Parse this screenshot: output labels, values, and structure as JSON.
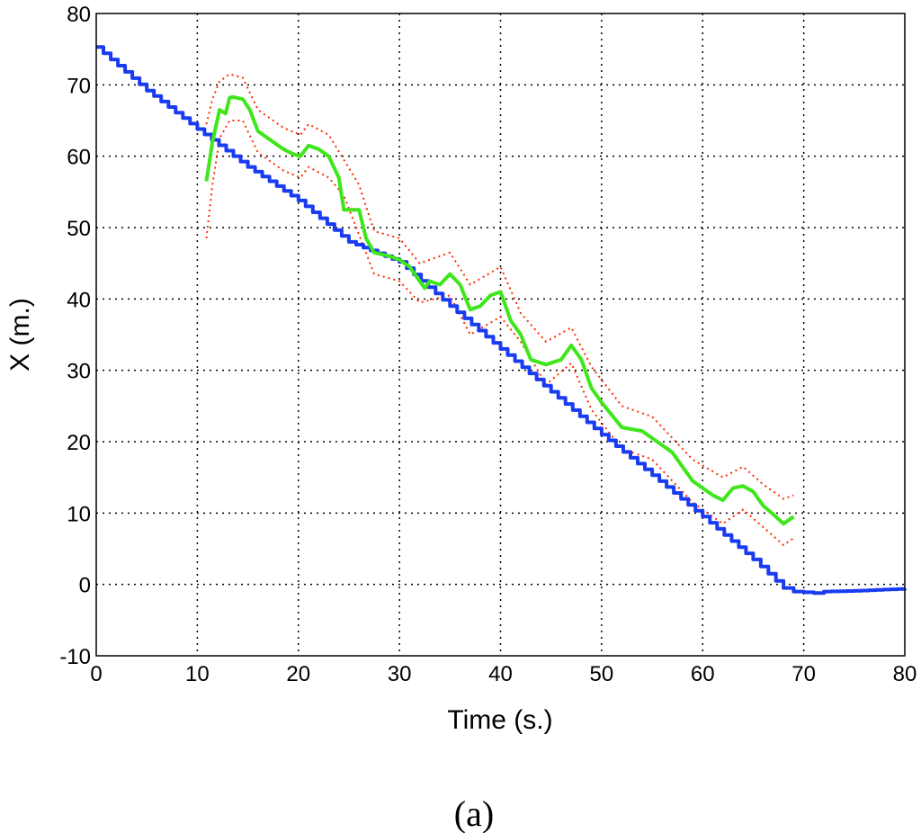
{
  "chart_data": {
    "type": "line",
    "xlabel": "Time (s.)",
    "ylabel": "X (m.)",
    "xlim": [
      0,
      80
    ],
    "ylim": [
      -10,
      80
    ],
    "xticks": [
      "0",
      "10",
      "20",
      "30",
      "40",
      "50",
      "60",
      "70",
      "80"
    ],
    "yticks": [
      "-10",
      "0",
      "10",
      "20",
      "30",
      "40",
      "50",
      "60",
      "70",
      "80"
    ],
    "grid": true,
    "caption": "(a)",
    "series": [
      {
        "color": "#1a3cf0",
        "style": "solid",
        "x": [
          0,
          5,
          10,
          15,
          20,
          25,
          30,
          35,
          40,
          45,
          50,
          55,
          60,
          65,
          68,
          69,
          70,
          71,
          72,
          75,
          80
        ],
        "y": [
          75.3,
          69.2,
          63.8,
          58.5,
          53.8,
          48.0,
          45.2,
          39.0,
          33.0,
          27.0,
          21.0,
          15.3,
          9.5,
          3.5,
          -0.5,
          -1.0,
          -1.1,
          -1.2,
          -1.0,
          -0.9,
          -0.6
        ]
      },
      {
        "color": "#3ee61a",
        "style": "solid",
        "x": [
          10.9,
          11.5,
          12.2,
          12.8,
          13.2,
          13.5,
          14.5,
          15.2,
          16.0,
          17.5,
          18.5,
          19.5,
          20.2,
          21.0,
          22.0,
          23.0,
          24.0,
          24.5,
          26.0,
          26.7,
          27.5,
          29.0,
          30.0,
          31.0,
          32.0,
          32.5,
          33.0,
          34.0,
          35.0,
          36.0,
          37.0,
          38.0,
          39.0,
          40.0,
          41.0,
          42.0,
          43.0,
          44.5,
          46.0,
          47.0,
          48.0,
          49.0,
          50.0,
          52.0,
          54.0,
          55.0,
          57.0,
          59.0,
          61.0,
          62.0,
          63.0,
          64.0,
          65.0,
          66.0,
          67.0,
          68.0,
          69.0
        ],
        "y": [
          56.5,
          62.0,
          66.5,
          66.0,
          68.2,
          68.3,
          68.0,
          66.5,
          63.5,
          62.0,
          61.0,
          60.3,
          60.0,
          61.5,
          61.0,
          60.0,
          57.0,
          52.5,
          52.5,
          48.5,
          46.5,
          46.0,
          45.5,
          44.5,
          42.5,
          41.5,
          42.5,
          42.0,
          43.5,
          42.0,
          38.5,
          39.0,
          40.5,
          41.0,
          37.0,
          35.0,
          31.5,
          30.8,
          31.5,
          33.5,
          31.5,
          27.5,
          25.5,
          22.0,
          21.5,
          20.5,
          18.5,
          14.5,
          12.5,
          11.8,
          13.5,
          13.8,
          13.0,
          11.0,
          9.8,
          8.5,
          9.5
        ]
      },
      {
        "color": "#ff2a00",
        "style": "dotted",
        "x": [
          10.9,
          11.5,
          12.2,
          13.2,
          14.5,
          16.0,
          18.5,
          20.2,
          21.0,
          23.0,
          24.5,
          26.0,
          27.5,
          30.0,
          32.0,
          35.0,
          37.0,
          40.0,
          42.0,
          44.5,
          47.0,
          49.0,
          52.0,
          55.0,
          59.0,
          62.0,
          64.0,
          66.0,
          68.0,
          69.0
        ],
        "y": [
          64.5,
          68.0,
          70.5,
          71.5,
          71.0,
          66.5,
          64.0,
          63.0,
          64.5,
          63.0,
          59.5,
          56.0,
          49.5,
          48.5,
          45.0,
          46.5,
          42.0,
          44.5,
          38.0,
          34.0,
          36.0,
          30.5,
          25.0,
          23.5,
          17.5,
          15.0,
          16.5,
          14.0,
          12.0,
          12.5
        ]
      },
      {
        "color": "#ff2a00",
        "style": "dotted",
        "x": [
          10.9,
          11.5,
          12.2,
          13.2,
          14.5,
          16.0,
          18.5,
          20.2,
          21.0,
          23.0,
          24.5,
          26.0,
          27.5,
          30.0,
          32.0,
          35.0,
          37.0,
          40.0,
          42.0,
          44.5,
          47.0,
          49.0,
          52.0,
          55.0,
          59.0,
          62.0,
          64.0,
          66.0,
          68.0,
          69.0
        ],
        "y": [
          48.5,
          56.0,
          62.5,
          65.0,
          65.0,
          60.5,
          58.0,
          57.0,
          58.5,
          57.0,
          54.5,
          49.0,
          43.5,
          42.5,
          39.5,
          40.5,
          35.0,
          37.5,
          34.0,
          28.0,
          31.0,
          24.5,
          19.0,
          17.5,
          11.5,
          8.5,
          10.5,
          8.0,
          5.5,
          6.5
        ]
      }
    ]
  }
}
